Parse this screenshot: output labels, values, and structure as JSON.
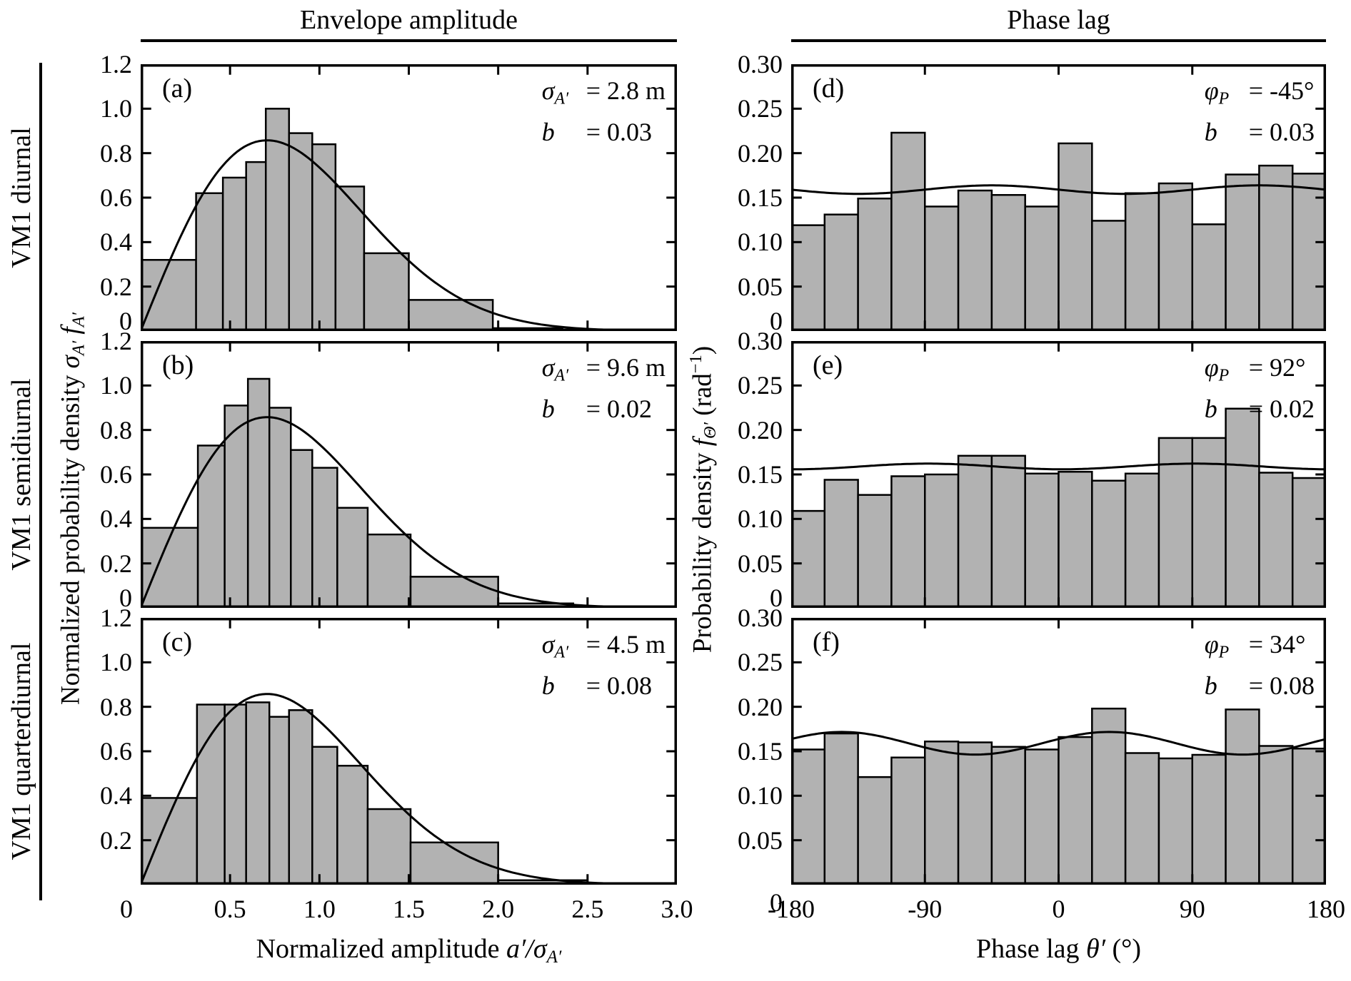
{
  "figure": {
    "column_headers": [
      "Envelope amplitude",
      "Phase lag"
    ],
    "row_labels": [
      "VM1 diurnal",
      "VM1 semidiurnal",
      "VM1 quarterdiurnal"
    ],
    "titles": {
      "x_left": [
        {
          "t": "Normalized amplitude "
        },
        {
          "t": "a′/σ",
          "i": 1
        },
        {
          "t": "A′",
          "sub": 1
        }
      ],
      "x_right": [
        {
          "t": "Phase lag "
        },
        {
          "t": "θ′",
          "i": 1
        },
        {
          "t": " (°)"
        }
      ],
      "y_left": [
        {
          "t": "Normalized probability density "
        },
        {
          "t": "σ",
          "i": 1
        },
        {
          "t": "A′",
          "sub": 1
        },
        {
          "t": " "
        },
        {
          "t": "f",
          "i": 1
        },
        {
          "t": "A′",
          "sub": 1
        }
      ],
      "y_right": [
        {
          "t": "Probability density "
        },
        {
          "t": "f",
          "i": 1
        },
        {
          "t": "Θ′",
          "sub": 1
        },
        {
          "t": " (rad"
        },
        {
          "t": "−1",
          "sup": 1
        },
        {
          "t": ")"
        }
      ]
    },
    "axes": {
      "left_column": {
        "x_range": [
          0,
          3
        ],
        "y_range": [
          0,
          1.2
        ],
        "y_tick_labels": [
          "1.2",
          "1.0",
          "0.8",
          "0.6",
          "0.4",
          "0.2"
        ],
        "y_tick_values": [
          1.2,
          1.0,
          0.8,
          0.6,
          0.4,
          0.2
        ],
        "interior_y_ticks": [
          0.2,
          0.4,
          0.6,
          0.8,
          1.0
        ],
        "x_tick_labels": [
          "0.5",
          "1.0",
          "1.5",
          "2.0",
          "2.5",
          "3.0"
        ],
        "x_tick_values": [
          0.5,
          1.0,
          1.5,
          2.0,
          2.5,
          3.0
        ],
        "interior_x_ticks": [
          0.5,
          1.0,
          1.5,
          2.0,
          2.5
        ],
        "corner_zero_label": "0"
      },
      "right_column": {
        "x_range": [
          -180,
          180
        ],
        "y_range": [
          0,
          0.3
        ],
        "y_tick_labels": [
          "0.30",
          "0.25",
          "0.20",
          "0.15",
          "0.10",
          "0.05"
        ],
        "y_tick_values": [
          0.3,
          0.25,
          0.2,
          0.15,
          0.1,
          0.05
        ],
        "interior_y_ticks": [
          0.05,
          0.1,
          0.15,
          0.2,
          0.25
        ],
        "x_tick_labels": [
          "-180",
          "-90",
          "0",
          "90",
          "180"
        ],
        "x_tick_values": [
          -180,
          -90,
          0,
          90,
          180
        ],
        "interior_x_ticks": [
          -90,
          0,
          90
        ],
        "corner_zero_label": "0"
      }
    },
    "colors": {
      "bar_fill": "#b2b2b2",
      "line": "#000000",
      "background": "#ffffff"
    }
  },
  "chart_data": [
    {
      "letter": "(a)",
      "row": 0,
      "col": 0,
      "type": "bar",
      "row_label": "VM1 diurnal",
      "column_header": "Envelope amplitude",
      "xlim": [
        0,
        3
      ],
      "ylim": [
        0,
        1.2
      ],
      "bin_edges": [
        0,
        0.31,
        0.46,
        0.59,
        0.7,
        0.83,
        0.96,
        1.09,
        1.25,
        1.5,
        1.97,
        2.36
      ],
      "bar_heights": [
        0.32,
        0.62,
        0.69,
        0.76,
        1.0,
        0.89,
        0.84,
        0.65,
        0.35,
        0.14,
        0.013
      ],
      "curve": {
        "kind": "rayleigh",
        "desc": "y = 2x·exp(−x²)"
      },
      "annotation": {
        "sym": [
          {
            "t": "σ",
            "i": 1
          },
          {
            "t": "A′",
            "sub": 1
          }
        ],
        "rhs": "= 2.8 m",
        "sym2": [
          {
            "t": "b",
            "i": 1
          }
        ],
        "rhs2": "= 0.03",
        "sigma_A": "2.8 m",
        "b": "0.03"
      }
    },
    {
      "letter": "(b)",
      "row": 1,
      "col": 0,
      "type": "bar",
      "row_label": "VM1 semidiurnal",
      "column_header": "Envelope amplitude",
      "xlim": [
        0,
        3
      ],
      "ylim": [
        0,
        1.2
      ],
      "bin_edges": [
        0,
        0.32,
        0.47,
        0.6,
        0.72,
        0.84,
        0.96,
        1.1,
        1.27,
        1.51,
        2.0,
        2.42
      ],
      "bar_heights": [
        0.36,
        0.73,
        0.91,
        1.03,
        0.9,
        0.71,
        0.63,
        0.45,
        0.33,
        0.14,
        0.02
      ],
      "curve": {
        "kind": "rayleigh",
        "desc": "y = 2x·exp(−x²)"
      },
      "annotation": {
        "sym": [
          {
            "t": "σ",
            "i": 1
          },
          {
            "t": "A′",
            "sub": 1
          }
        ],
        "rhs": "= 9.6 m",
        "sym2": [
          {
            "t": "b",
            "i": 1
          }
        ],
        "rhs2": "= 0.02",
        "sigma_A": "9.6 m",
        "b": "0.02"
      }
    },
    {
      "letter": "(c)",
      "row": 2,
      "col": 0,
      "type": "bar",
      "row_label": "VM1 quarterdiurnal",
      "column_header": "Envelope amplitude",
      "xlim": [
        0,
        3
      ],
      "ylim": [
        0,
        1.2
      ],
      "bin_edges": [
        0,
        0.315,
        0.47,
        0.59,
        0.72,
        0.83,
        0.96,
        1.1,
        1.27,
        1.51,
        2.0,
        2.5
      ],
      "bar_heights": [
        0.39,
        0.81,
        0.81,
        0.82,
        0.755,
        0.785,
        0.62,
        0.535,
        0.34,
        0.19,
        0.02
      ],
      "curve": {
        "kind": "rayleigh",
        "desc": "y = 2x·exp(−x²)"
      },
      "annotation": {
        "sym": [
          {
            "t": "σ",
            "i": 1
          },
          {
            "t": "A′",
            "sub": 1
          }
        ],
        "rhs": "= 4.5 m",
        "sym2": [
          {
            "t": "b",
            "i": 1
          }
        ],
        "rhs2": "= 0.08",
        "sigma_A": "4.5 m",
        "b": "0.08"
      }
    },
    {
      "letter": "(d)",
      "row": 0,
      "col": 1,
      "type": "bar",
      "row_label": "VM1 diurnal",
      "column_header": "Phase lag",
      "xlim": [
        -180,
        180
      ],
      "ylim": [
        0,
        0.3
      ],
      "bin_edges": [
        -180,
        -157.5,
        -135,
        -112.5,
        -90,
        -67.5,
        -45,
        -22.5,
        0,
        22.5,
        45,
        67.5,
        90,
        112.5,
        135,
        157.5,
        180
      ],
      "bar_heights": [
        0.119,
        0.131,
        0.149,
        0.223,
        0.14,
        0.158,
        0.153,
        0.14,
        0.211,
        0.124,
        0.155,
        0.166,
        0.12,
        0.176,
        0.186,
        0.177
      ],
      "curve": {
        "kind": "cosine",
        "mean": 0.159,
        "b": 0.03,
        "phi_deg": -45,
        "desc": "y = 0.159·(1 + b·cos(2(θ−φP)))"
      },
      "annotation": {
        "sym": [
          {
            "t": "φ",
            "i": 1
          },
          {
            "t": "P",
            "sub": 1
          }
        ],
        "rhs": "= -45°",
        "sym2": [
          {
            "t": "b",
            "i": 1
          }
        ],
        "rhs2": "= 0.03",
        "phi_P": "-45°",
        "b": "0.03"
      }
    },
    {
      "letter": "(e)",
      "row": 1,
      "col": 1,
      "type": "bar",
      "row_label": "VM1 semidiurnal",
      "column_header": "Phase lag",
      "xlim": [
        -180,
        180
      ],
      "ylim": [
        0,
        0.3
      ],
      "bin_edges": [
        -180,
        -157.5,
        -135,
        -112.5,
        -90,
        -67.5,
        -45,
        -22.5,
        0,
        22.5,
        45,
        67.5,
        90,
        112.5,
        135,
        157.5,
        180
      ],
      "bar_heights": [
        0.109,
        0.144,
        0.127,
        0.148,
        0.15,
        0.171,
        0.171,
        0.151,
        0.153,
        0.143,
        0.151,
        0.191,
        0.191,
        0.224,
        0.152,
        0.146
      ],
      "curve": {
        "kind": "cosine",
        "mean": 0.159,
        "b": 0.02,
        "phi_deg": 92,
        "desc": "y = 0.159·(1 + b·cos(2(θ−φP)))"
      },
      "annotation": {
        "sym": [
          {
            "t": "φ",
            "i": 1
          },
          {
            "t": "P",
            "sub": 1
          }
        ],
        "rhs": "= 92°",
        "sym2": [
          {
            "t": "b",
            "i": 1
          }
        ],
        "rhs2": "= 0.02",
        "phi_P": "92°",
        "b": "0.02"
      }
    },
    {
      "letter": "(f)",
      "row": 2,
      "col": 1,
      "type": "bar",
      "row_label": "VM1 quarterdiurnal",
      "column_header": "Phase lag",
      "xlim": [
        -180,
        180
      ],
      "ylim": [
        0,
        0.3
      ],
      "bin_edges": [
        -180,
        -157.5,
        -135,
        -112.5,
        -90,
        -67.5,
        -45,
        -22.5,
        0,
        22.5,
        45,
        67.5,
        90,
        112.5,
        135,
        157.5,
        180
      ],
      "bar_heights": [
        0.152,
        0.17,
        0.121,
        0.143,
        0.161,
        0.16,
        0.155,
        0.152,
        0.166,
        0.198,
        0.148,
        0.142,
        0.146,
        0.197,
        0.156,
        0.153
      ],
      "curve": {
        "kind": "cosine",
        "mean": 0.159,
        "b": 0.08,
        "phi_deg": 34,
        "desc": "y = 0.159·(1 + b·cos(2(θ−φP)))"
      },
      "annotation": {
        "sym": [
          {
            "t": "φ",
            "i": 1
          },
          {
            "t": "P",
            "sub": 1
          }
        ],
        "rhs": "= 34°",
        "sym2": [
          {
            "t": "b",
            "i": 1
          }
        ],
        "rhs2": "= 0.08",
        "phi_P": "34°",
        "b": "0.08"
      }
    }
  ]
}
